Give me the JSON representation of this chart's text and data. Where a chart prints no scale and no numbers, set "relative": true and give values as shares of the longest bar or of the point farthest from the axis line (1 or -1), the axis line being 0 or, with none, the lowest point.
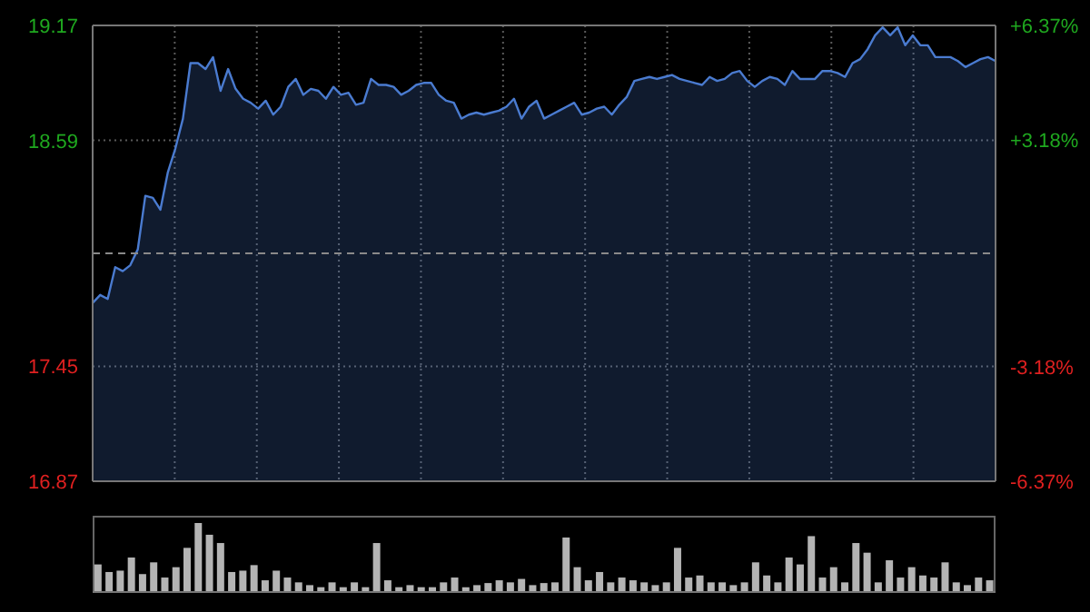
{
  "chart_data": [
    {
      "type": "area",
      "categories": [
        null,
        null,
        null,
        null,
        null,
        null,
        null,
        null,
        null,
        null,
        null,
        null,
        null,
        null,
        null,
        null,
        null,
        null,
        null,
        null,
        null,
        null,
        null,
        null,
        null,
        null,
        null,
        null,
        null,
        null,
        null,
        null,
        null,
        null,
        null,
        null,
        null,
        null,
        null,
        null,
        null,
        null,
        null,
        null,
        null,
        null,
        null,
        null,
        null,
        null,
        null,
        null,
        null,
        null,
        null,
        null,
        null,
        null,
        null,
        null,
        null,
        null,
        null,
        null,
        null,
        null,
        null,
        null,
        null,
        null,
        null,
        null,
        null,
        null,
        null,
        null,
        null,
        null,
        null,
        null,
        null,
        null,
        null,
        null,
        null,
        null,
        null,
        null,
        null,
        null,
        null,
        null,
        null,
        null,
        null,
        null,
        null,
        null,
        null,
        null,
        null,
        null,
        null,
        null,
        null,
        null,
        null,
        null,
        null,
        null,
        null,
        null,
        null,
        null,
        null,
        null,
        null,
        null,
        null,
        null,
        null
      ],
      "series": [
        {
          "color": "#4a7bd0",
          "values": [
            17.77,
            17.81,
            17.79,
            17.95,
            17.93,
            17.96,
            18.04,
            18.31,
            18.3,
            18.24,
            18.43,
            18.55,
            18.7,
            18.98,
            18.98,
            18.95,
            19.01,
            18.84,
            18.95,
            18.85,
            18.8,
            18.78,
            18.75,
            18.79,
            18.72,
            18.76,
            18.86,
            18.9,
            18.82,
            18.85,
            18.84,
            18.8,
            18.86,
            18.82,
            18.83,
            18.77,
            18.78,
            18.9,
            18.87,
            18.87,
            18.86,
            18.82,
            18.84,
            18.87,
            18.88,
            18.88,
            18.82,
            18.79,
            18.78,
            18.7,
            18.72,
            18.73,
            18.72,
            18.73,
            18.74,
            18.76,
            18.8,
            18.7,
            18.76,
            18.79,
            18.7,
            18.72,
            18.74,
            18.76,
            18.78,
            18.72,
            18.73,
            18.75,
            18.76,
            18.72,
            18.77,
            18.81,
            18.89,
            18.9,
            18.91,
            18.9,
            18.91,
            18.92,
            18.9,
            18.89,
            18.88,
            18.87,
            18.91,
            18.89,
            18.9,
            18.93,
            18.94,
            18.89,
            18.86,
            18.89,
            18.91,
            18.9,
            18.87,
            18.94,
            18.9,
            18.9,
            18.9,
            18.94,
            18.94,
            18.93,
            18.91,
            18.98,
            19.0,
            19.05,
            19.12,
            19.16,
            19.12,
            19.16,
            19.07,
            19.12,
            19.07,
            19.07,
            19.01,
            19.01,
            19.01,
            18.99,
            18.96,
            18.98,
            19.0,
            19.01,
            18.99
          ]
        }
      ],
      "ylim": [
        16.87,
        19.17
      ],
      "yticks": [
        16.87,
        17.45,
        18.59,
        19.17
      ],
      "y2lim": [
        -6.37,
        6.37
      ],
      "y2ticks": [
        {
          "value": -6.37,
          "label": "-6.37%"
        },
        {
          "value": -3.18,
          "label": "-3.18%"
        },
        {
          "value": 3.18,
          "label": "+3.18%"
        },
        {
          "value": 6.37,
          "label": "+6.37%"
        }
      ],
      "ref_lines": [
        {
          "axis": "y",
          "value": 18.02,
          "line_style": "dashed"
        }
      ],
      "grid": true
    },
    {
      "type": "bar",
      "relative": true,
      "color": "#b4b4b4",
      "categories": [
        null,
        null,
        null,
        null,
        null,
        null,
        null,
        null,
        null,
        null,
        null,
        null,
        null,
        null,
        null,
        null,
        null,
        null,
        null,
        null,
        null,
        null,
        null,
        null,
        null,
        null,
        null,
        null,
        null,
        null,
        null,
        null,
        null,
        null,
        null,
        null,
        null,
        null,
        null,
        null,
        null,
        null,
        null,
        null,
        null,
        null,
        null,
        null,
        null,
        null,
        null,
        null,
        null,
        null,
        null,
        null,
        null,
        null,
        null,
        null,
        null,
        null,
        null,
        null,
        null,
        null,
        null,
        null,
        null,
        null,
        null,
        null,
        null,
        null,
        null,
        null,
        null,
        null,
        null,
        null,
        null
      ],
      "values": [
        0.4,
        0.29,
        0.31,
        0.5,
        0.26,
        0.43,
        0.21,
        0.36,
        0.64,
        1,
        0.83,
        0.71,
        0.29,
        0.31,
        0.39,
        0.17,
        0.31,
        0.21,
        0.14,
        0.1,
        0.07,
        0.14,
        0.07,
        0.14,
        0.07,
        0.71,
        0.17,
        0.07,
        0.1,
        0.07,
        0.07,
        0.14,
        0.21,
        0.07,
        0.1,
        0.13,
        0.17,
        0.14,
        0.19,
        0.1,
        0.13,
        0.14,
        0.79,
        0.36,
        0.17,
        0.29,
        0.14,
        0.21,
        0.17,
        0.14,
        0.1,
        0.14,
        0.64,
        0.21,
        0.24,
        0.14,
        0.14,
        0.1,
        0.14,
        0.43,
        0.24,
        0.14,
        0.5,
        0.4,
        0.81,
        0.21,
        0.36,
        0.14,
        0.71,
        0.57,
        0.14,
        0.46,
        0.21,
        0.36,
        0.24,
        0.21,
        0.43,
        0.14,
        0.1,
        0.21,
        0.17
      ]
    }
  ]
}
